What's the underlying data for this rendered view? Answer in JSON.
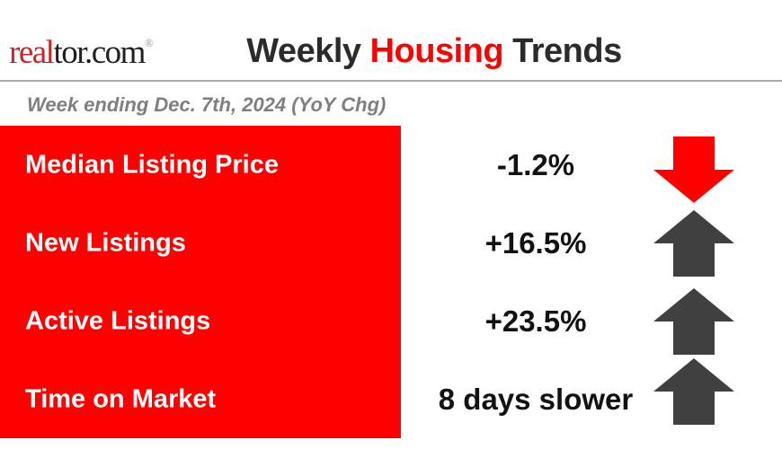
{
  "header": {
    "logo": {
      "prefix": "real",
      "suffix": "tor.com",
      "registered": "®"
    },
    "title": {
      "part1": "Weekly ",
      "highlight": "Housing",
      "part2": " Trends"
    },
    "subtitle": "Week ending Dec. 7th, 2024 (YoY Chg)"
  },
  "colors": {
    "panel_red": "#fe0000",
    "arrow_red": "#fe0000",
    "arrow_dark": "#404040",
    "logo_red": "#d12228",
    "title_dark": "#2b2b2b",
    "subtitle_gray": "#7f7f7f",
    "divider_gray": "#a8a8a8"
  },
  "rows": [
    {
      "label": "Median Listing Price",
      "value": "-1.2%",
      "arrow": {
        "direction": "down",
        "color": "#fe0000"
      }
    },
    {
      "label": "New Listings",
      "value": "+16.5%",
      "arrow": {
        "direction": "up",
        "color": "#404040"
      }
    },
    {
      "label": "Active Listings",
      "value": "+23.5%",
      "arrow": {
        "direction": "up",
        "color": "#404040"
      }
    },
    {
      "label": "Time on Market",
      "value": "8 days slower",
      "arrow": {
        "direction": "up",
        "color": "#404040"
      }
    }
  ],
  "chart_data": {
    "type": "table",
    "title": "Weekly Housing Trends",
    "subtitle": "Week ending Dec. 7th, 2024 (YoY Chg)",
    "categories": [
      "Median Listing Price",
      "New Listings",
      "Active Listings",
      "Time on Market"
    ],
    "values": [
      "-1.2%",
      "+16.5%",
      "+23.5%",
      "8 days slower"
    ],
    "yoy_change_pct": [
      -1.2,
      16.5,
      23.5,
      null
    ],
    "time_on_market_change_days": 8,
    "directions": [
      "down",
      "up",
      "up",
      "up"
    ]
  }
}
